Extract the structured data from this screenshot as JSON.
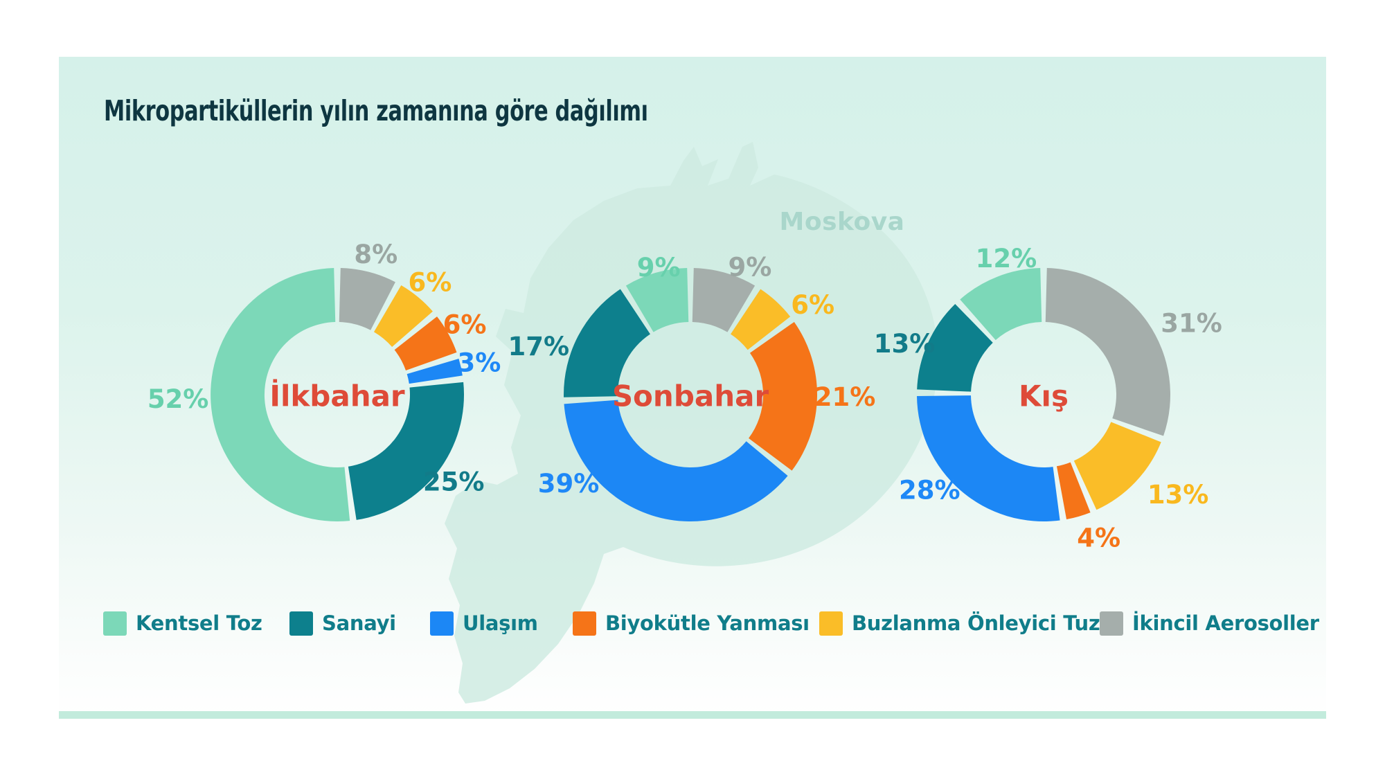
{
  "title": "Mikropartiküllerin yılın zamanına göre dağılımı",
  "map_label": "Moskova",
  "unit": "%",
  "colors": {
    "panel_top": "#D5F1EA",
    "panel_bottom": "#FFFFFF",
    "footer_stripe": "#C2EBDC",
    "title_text": "#0E3641",
    "legend_text": "#107D8A",
    "season_label_text": "#DE4B38",
    "map_fill": "#CFEBE2",
    "map_label_text": "#A9D6CB"
  },
  "legend": [
    {
      "id": "kentsel-toz",
      "label": "Kentsel Toz",
      "color": "#7CD8B8",
      "label_color": "#67D0AC"
    },
    {
      "id": "sanayi",
      "label": "Sanayi",
      "color": "#0D808D",
      "label_color": "#127B89"
    },
    {
      "id": "ulasim",
      "label": "Ulaşım",
      "color": "#1C87F5",
      "label_color": "#1E88F7"
    },
    {
      "id": "biyokutle-yanmasi",
      "label": "Biyokütle Yanması",
      "color": "#F57418",
      "label_color": "#F57418"
    },
    {
      "id": "buzlanma-onleyici-tuz",
      "label": "Buzlanma Önleyici Tuz",
      "color": "#FABD28",
      "label_color": "#F9B81E"
    },
    {
      "id": "ikincil-aerosoller",
      "label": "İkincil Aerosoller",
      "color": "#A5AEAB",
      "label_color": "#9AA6A2"
    }
  ],
  "chart_data": {
    "type": "pie",
    "subtype": "donut",
    "title": "Mikropartiküllerin yılın zamanına göre dağılımı",
    "region_label": "Moskova",
    "unit": "%",
    "legend_entries": [
      "Kentsel Toz",
      "Sanayi",
      "Ulaşım",
      "Biyokütle Yanması",
      "Buzlanma Önleyici Tuz",
      "İkincil Aerosoller"
    ],
    "slices_listed_clockwise_from_top": true,
    "charts": [
      {
        "name": "İlkbahar",
        "slices": [
          {
            "cat": "ikincil-aerosoller",
            "category": "İkincil Aerosoller",
            "value": 8,
            "label": "8%"
          },
          {
            "cat": "buzlanma-onleyici-tuz",
            "category": "Buzlanma Önleyici Tuz",
            "value": 6,
            "label": "6%"
          },
          {
            "cat": "biyokutle-yanmasi",
            "category": "Biyokütle Yanması",
            "value": 6,
            "label": "6%"
          },
          {
            "cat": "ulasim",
            "category": "Ulaşım",
            "value": 3,
            "label": "3%"
          },
          {
            "cat": "sanayi",
            "category": "Sanayi",
            "value": 25,
            "label": "25%"
          },
          {
            "cat": "kentsel-toz",
            "category": "Kentsel Toz",
            "value": 52,
            "label": "52%"
          }
        ]
      },
      {
        "name": "Sonbahar",
        "slices": [
          {
            "cat": "ikincil-aerosoller",
            "category": "İkincil Aerosoller",
            "value": 9,
            "label": "9%"
          },
          {
            "cat": "buzlanma-onleyici-tuz",
            "category": "Buzlanma Önleyici Tuz",
            "value": 6,
            "label": "6%"
          },
          {
            "cat": "biyokutle-yanmasi",
            "category": "Biyokütle Yanması",
            "value": 21,
            "label": "21%"
          },
          {
            "cat": "ulasim",
            "category": "Ulaşım",
            "value": 39,
            "label": "39%"
          },
          {
            "cat": "sanayi",
            "category": "Sanayi",
            "value": 17,
            "label": "17%"
          },
          {
            "cat": "kentsel-toz",
            "category": "Kentsel Toz",
            "value": 9,
            "label": "9%"
          }
        ]
      },
      {
        "name": "Kış",
        "slices": [
          {
            "cat": "ikincil-aerosoller",
            "category": "İkincil Aerosoller",
            "value": 31,
            "label": "31%"
          },
          {
            "cat": "buzlanma-onleyici-tuz",
            "category": "Buzlanma Önleyici Tuz",
            "value": 13,
            "label": "13%"
          },
          {
            "cat": "biyokutle-yanmasi",
            "category": "Biyokütle Yanması",
            "value": 4,
            "label": "4%"
          },
          {
            "cat": "ulasim",
            "category": "Ulaşım",
            "value": 28,
            "label": "28%"
          },
          {
            "cat": "sanayi",
            "category": "Sanayi",
            "value": 13,
            "label": "13%"
          },
          {
            "cat": "kentsel-toz",
            "category": "Kentsel Toz",
            "value": 12,
            "label": "12%"
          }
        ]
      }
    ]
  }
}
